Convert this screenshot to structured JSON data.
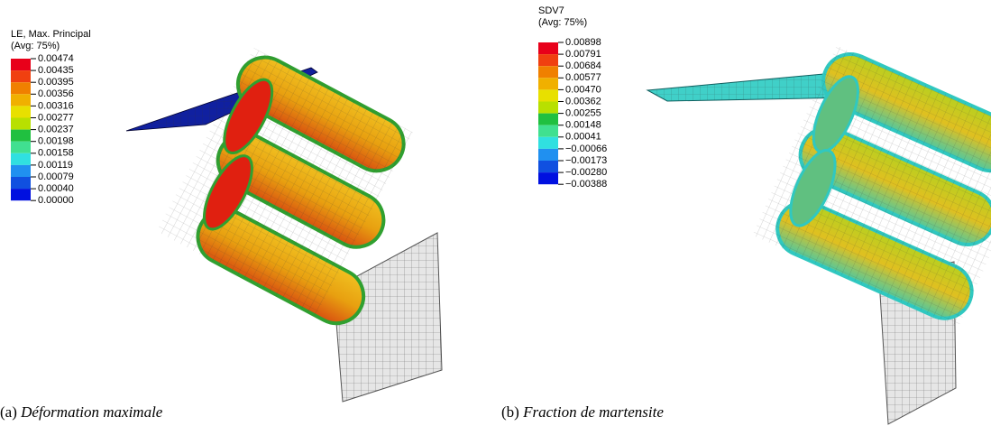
{
  "panels": [
    {
      "legend_title": "LE, Max. Principal",
      "legend_subtitle": "(Avg: 75%)",
      "legend_levels": [
        "0.00474",
        "0.00435",
        "0.00395",
        "0.00356",
        "0.00316",
        "0.00277",
        "0.00237",
        "0.00198",
        "0.00158",
        "0.00119",
        "0.00079",
        "0.00040",
        "0.00000"
      ],
      "caption_label": "(a)",
      "caption_text": "Déformation maximale"
    },
    {
      "legend_title": "SDV7",
      "legend_subtitle": "(Avg: 75%)",
      "legend_levels": [
        "0.00898",
        "0.00791",
        "0.00684",
        "0.00577",
        "0.00470",
        "0.00362",
        "0.00255",
        "0.00148",
        "0.00041",
        "−0.00066",
        "−0.00173",
        "−0.00280",
        "−0.00388"
      ],
      "caption_label": "(b)",
      "caption_text": "Fraction de martensite"
    }
  ]
}
